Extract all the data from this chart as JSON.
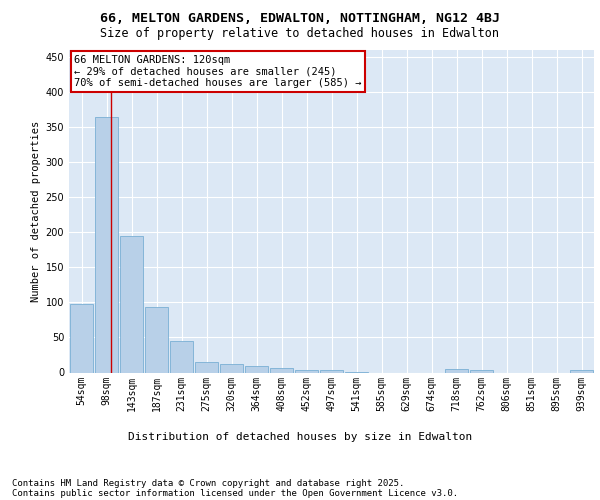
{
  "title1": "66, MELTON GARDENS, EDWALTON, NOTTINGHAM, NG12 4BJ",
  "title2": "Size of property relative to detached houses in Edwalton",
  "xlabel": "Distribution of detached houses by size in Edwalton",
  "ylabel": "Number of detached properties",
  "categories": [
    "54sqm",
    "98sqm",
    "143sqm",
    "187sqm",
    "231sqm",
    "275sqm",
    "320sqm",
    "364sqm",
    "408sqm",
    "452sqm",
    "497sqm",
    "541sqm",
    "585sqm",
    "629sqm",
    "674sqm",
    "718sqm",
    "762sqm",
    "806sqm",
    "851sqm",
    "895sqm",
    "939sqm"
  ],
  "values": [
    98,
    365,
    195,
    93,
    45,
    15,
    12,
    9,
    6,
    4,
    3,
    1,
    0,
    0,
    0,
    5,
    4,
    0,
    0,
    0,
    3
  ],
  "bar_color": "#b8d0e8",
  "bar_edge_color": "#7aafd4",
  "vline_x_index": 1.18,
  "vline_color": "#cc0000",
  "annotation_text": "66 MELTON GARDENS: 120sqm\n← 29% of detached houses are smaller (245)\n70% of semi-detached houses are larger (585) →",
  "annotation_box_facecolor": "#ffffff",
  "annotation_box_edgecolor": "#cc0000",
  "ylim": [
    0,
    460
  ],
  "yticks": [
    0,
    50,
    100,
    150,
    200,
    250,
    300,
    350,
    400,
    450
  ],
  "footer1": "Contains HM Land Registry data © Crown copyright and database right 2025.",
  "footer2": "Contains public sector information licensed under the Open Government Licence v3.0.",
  "plot_bg_color": "#dce8f5",
  "fig_bg_color": "#ffffff",
  "grid_color": "#ffffff",
  "title1_fontsize": 9.5,
  "title2_fontsize": 8.5,
  "xlabel_fontsize": 8,
  "ylabel_fontsize": 7.5,
  "tick_fontsize": 7,
  "annotation_fontsize": 7.5,
  "footer_fontsize": 6.5
}
